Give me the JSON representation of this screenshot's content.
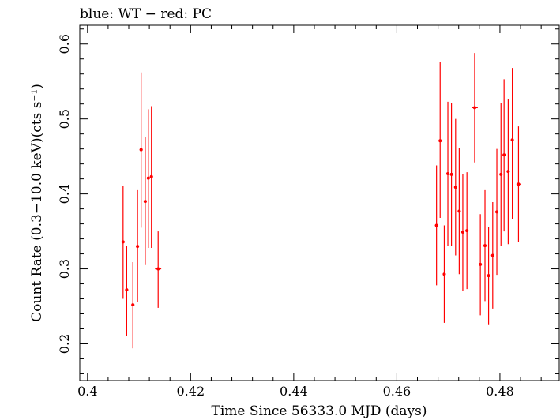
{
  "chart_data": {
    "type": "scatter",
    "title": "blue: WT − red: PC",
    "xlabel": "Time Since 56333.0 MJD (days)",
    "ylabel": "Count Rate (0.3−10.0 keV)(cts s⁻¹)",
    "xlim": [
      0.3985,
      0.4915
    ],
    "ylim": [
      0.151,
      0.625
    ],
    "xticks": [
      0.4,
      0.42,
      0.44,
      0.46,
      0.48
    ],
    "xtick_labels": [
      "0.4",
      "0.42",
      "0.44",
      "0.46",
      "0.48"
    ],
    "yticks": [
      0.2,
      0.3,
      0.4,
      0.5,
      0.6
    ],
    "ytick_labels": [
      "0.2",
      "0.3",
      "0.4",
      "0.5",
      "0.6"
    ],
    "grid": false,
    "series": [
      {
        "color": "#ff0000",
        "points": [
          {
            "x": 0.4069,
            "y": 0.336,
            "yerr": [
              0.26,
              0.411
            ],
            "xerr": 0.0003
          },
          {
            "x": 0.4076,
            "y": 0.272,
            "yerr": [
              0.21,
              0.331
            ],
            "xerr": 0.0003
          },
          {
            "x": 0.4088,
            "y": 0.252,
            "yerr": [
              0.194,
              0.309
            ],
            "xerr": 0.0003
          },
          {
            "x": 0.4097,
            "y": 0.33,
            "yerr": [
              0.256,
              0.405
            ],
            "xerr": 0.0003
          },
          {
            "x": 0.4104,
            "y": 0.459,
            "yerr": [
              0.355,
              0.562
            ],
            "xerr": 0.0003
          },
          {
            "x": 0.4112,
            "y": 0.39,
            "yerr": [
              0.305,
              0.476
            ],
            "xerr": 0.0003
          },
          {
            "x": 0.4118,
            "y": 0.421,
            "yerr": [
              0.328,
              0.513
            ],
            "xerr": 0.0003
          },
          {
            "x": 0.4124,
            "y": 0.423,
            "yerr": [
              0.328,
              0.517
            ],
            "xerr": 0.0003
          },
          {
            "x": 0.4137,
            "y": 0.3,
            "yerr": [
              0.248,
              0.35
            ],
            "xerr": 0.0006
          },
          {
            "x": 0.4677,
            "y": 0.358,
            "yerr": [
              0.278,
              0.438
            ],
            "xerr": 0.0003
          },
          {
            "x": 0.4684,
            "y": 0.471,
            "yerr": [
              0.368,
              0.576
            ],
            "xerr": 0.0003
          },
          {
            "x": 0.4692,
            "y": 0.293,
            "yerr": [
              0.228,
              0.358
            ],
            "xerr": 0.0003
          },
          {
            "x": 0.4699,
            "y": 0.427,
            "yerr": [
              0.331,
              0.523
            ],
            "xerr": 0.0003
          },
          {
            "x": 0.4706,
            "y": 0.426,
            "yerr": [
              0.331,
              0.521
            ],
            "xerr": 0.0003
          },
          {
            "x": 0.4714,
            "y": 0.409,
            "yerr": [
              0.318,
              0.5
            ],
            "xerr": 0.0003
          },
          {
            "x": 0.4721,
            "y": 0.377,
            "yerr": [
              0.293,
              0.461
            ],
            "xerr": 0.0003
          },
          {
            "x": 0.4728,
            "y": 0.349,
            "yerr": [
              0.271,
              0.427
            ],
            "xerr": 0.0003
          },
          {
            "x": 0.4736,
            "y": 0.351,
            "yerr": [
              0.273,
              0.429
            ],
            "xerr": 0.0003
          },
          {
            "x": 0.4751,
            "y": 0.515,
            "yerr": [
              0.442,
              0.588
            ],
            "xerr": 0.0006
          },
          {
            "x": 0.4762,
            "y": 0.306,
            "yerr": [
              0.238,
              0.373
            ],
            "xerr": 0.0003
          },
          {
            "x": 0.4771,
            "y": 0.331,
            "yerr": [
              0.257,
              0.405
            ],
            "xerr": 0.0003
          },
          {
            "x": 0.4778,
            "y": 0.291,
            "yerr": [
              0.225,
              0.356
            ],
            "xerr": 0.0003
          },
          {
            "x": 0.4786,
            "y": 0.318,
            "yerr": [
              0.247,
              0.389
            ],
            "xerr": 0.0003
          },
          {
            "x": 0.4794,
            "y": 0.376,
            "yerr": [
              0.292,
              0.46
            ],
            "xerr": 0.0003
          },
          {
            "x": 0.4802,
            "y": 0.426,
            "yerr": [
              0.331,
              0.521
            ],
            "xerr": 0.0003
          },
          {
            "x": 0.4808,
            "y": 0.452,
            "yerr": [
              0.35,
              0.553
            ],
            "xerr": 0.0003
          },
          {
            "x": 0.4816,
            "y": 0.43,
            "yerr": [
              0.333,
              0.526
            ],
            "xerr": 0.0003
          },
          {
            "x": 0.4824,
            "y": 0.472,
            "yerr": [
              0.366,
              0.568
            ],
            "xerr": 0.0003
          },
          {
            "x": 0.4836,
            "y": 0.413,
            "yerr": [
              0.336,
              0.49
            ],
            "xerr": 0.0004
          }
        ]
      }
    ]
  }
}
